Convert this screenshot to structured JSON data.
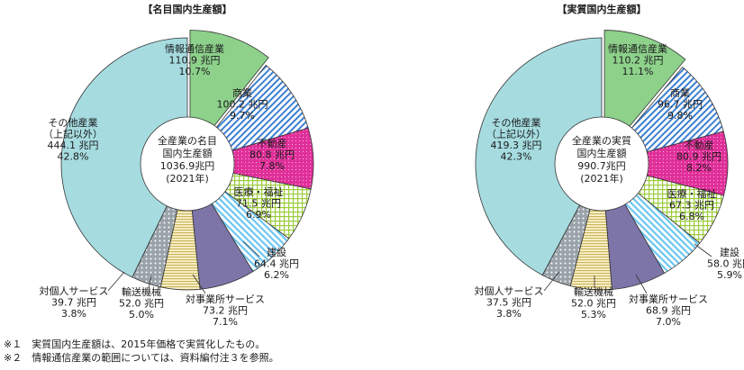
{
  "chart_data": [
    {
      "type": "pie",
      "title": "【名目国内生産額】",
      "center_label": [
        "全産業の名目",
        "国内生産額",
        "1036.9兆円",
        "(2021年)"
      ],
      "unit": "兆円",
      "slices": [
        {
          "label": [
            "情報通信産業"
          ],
          "value": 110.9,
          "value_text": "110.9 兆円",
          "percent": 10.7,
          "percent_text": "10.7%"
        },
        {
          "label": [
            "商業"
          ],
          "value": 100.2,
          "value_text": "100.2 兆円",
          "percent": 9.7,
          "percent_text": "9.7%"
        },
        {
          "label": [
            "不動産"
          ],
          "value": 80.8,
          "value_text": "80.8 兆円",
          "percent": 7.8,
          "percent_text": "7.8%"
        },
        {
          "label": [
            "医療・福祉"
          ],
          "value": 71.5,
          "value_text": "71.5 兆円",
          "percent": 6.9,
          "percent_text": "6.9%"
        },
        {
          "label": [
            "建設"
          ],
          "value": 64.4,
          "value_text": "64.4 兆円",
          "percent": 6.2,
          "percent_text": "6.2%"
        },
        {
          "label": [
            "対事業所サービス"
          ],
          "value": 73.2,
          "value_text": "73.2 兆円",
          "percent": 7.1,
          "percent_text": "7.1%"
        },
        {
          "label": [
            "輸送機械"
          ],
          "value": 52.0,
          "value_text": "52.0 兆円",
          "percent": 5.0,
          "percent_text": "5.0%"
        },
        {
          "label": [
            "対個人サービス"
          ],
          "value": 39.7,
          "value_text": "39.7 兆円",
          "percent": 3.8,
          "percent_text": "3.8%"
        },
        {
          "label": [
            "その他産業",
            "（上記以外）"
          ],
          "value": 444.1,
          "value_text": "444.1 兆円",
          "percent": 42.8,
          "percent_text": "42.8%"
        }
      ]
    },
    {
      "type": "pie",
      "title": "【実質国内生産額】",
      "center_label": [
        "全産業の実質",
        "国内生産額",
        "990.7兆円",
        "(2021年)"
      ],
      "unit": "兆円",
      "slices": [
        {
          "label": [
            "情報通信産業"
          ],
          "value": 110.2,
          "value_text": "110.2 兆円",
          "percent": 11.1,
          "percent_text": "11.1%"
        },
        {
          "label": [
            "商業"
          ],
          "value": 96.7,
          "value_text": "96.7 兆円",
          "percent": 9.8,
          "percent_text": "9.8%"
        },
        {
          "label": [
            "不動産"
          ],
          "value": 80.9,
          "value_text": "80.9 兆円",
          "percent": 8.2,
          "percent_text": "8.2%"
        },
        {
          "label": [
            "医療・福祉"
          ],
          "value": 67.3,
          "value_text": "67.3 兆円",
          "percent": 6.8,
          "percent_text": "6.8%"
        },
        {
          "label": [
            "建設"
          ],
          "value": 58.0,
          "value_text": "58.0 兆円",
          "percent": 5.9,
          "percent_text": "5.9%"
        },
        {
          "label": [
            "対事業所サービス"
          ],
          "value": 68.9,
          "value_text": "68.9 兆円",
          "percent": 7.0,
          "percent_text": "7.0%"
        },
        {
          "label": [
            "輸送機械"
          ],
          "value": 52.0,
          "value_text": "52.0 兆円",
          "percent": 5.3,
          "percent_text": "5.3%"
        },
        {
          "label": [
            "対個人サービス"
          ],
          "value": 37.5,
          "value_text": "37.5 兆円",
          "percent": 3.8,
          "percent_text": "3.8%"
        },
        {
          "label": [
            "その他産業",
            "（上記以外）"
          ],
          "value": 419.3,
          "value_text": "419.3 兆円",
          "percent": 42.3,
          "percent_text": "42.3%"
        }
      ]
    }
  ],
  "colors": {
    "info": "#8dd18b",
    "commerce": "#3d7fd1",
    "realestate": "#e0309a",
    "medical": "#9ccc3c",
    "construction": "#6cc6f0",
    "business_services": "#7d74a8",
    "transport": "#d6c47a",
    "personal_services": "#9aa3aa",
    "other": "#a6dce0"
  },
  "notes": [
    "※１　実質国内生産額は、2015年価格で実質化したもの。",
    "※２　情報通信産業の範囲については、資料編付注３を参照。"
  ]
}
